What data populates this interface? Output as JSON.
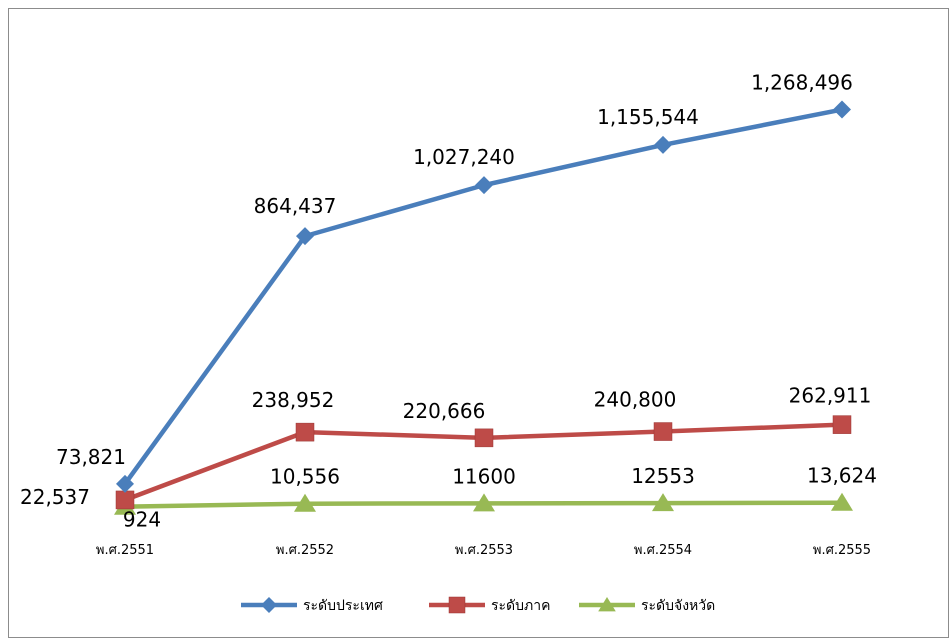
{
  "chart_data": {
    "type": "line",
    "categories": [
      "พ.ศ.2551",
      "พ.ศ.2552",
      "พ.ศ.2553",
      "พ.ศ.2554",
      "พ.ศ.2555"
    ],
    "series": [
      {
        "name": "ระดับประเทศ",
        "color": "#4a7ebb",
        "marker": "diamond",
        "values": [
          73821,
          864437,
          1027240,
          1155544,
          1268496
        ],
        "labels": [
          "73,821",
          "864,437",
          "1,027,240",
          "1,155,544",
          "1,268,496"
        ]
      },
      {
        "name": "ระดับภาค",
        "color": "#be4b48",
        "marker": "square",
        "values": [
          22537,
          238952,
          220666,
          240800,
          262911
        ],
        "labels": [
          "22,537",
          "238,952",
          "220,666",
          "240,800",
          "262,911"
        ]
      },
      {
        "name": "ระดับจังหวัด",
        "color": "#98b954",
        "marker": "triangle",
        "values": [
          924,
          10556,
          11600,
          12553,
          13624
        ],
        "labels": [
          "924",
          "10,556",
          "11600",
          "12553",
          "13,624"
        ]
      }
    ],
    "title": "",
    "xlabel": "",
    "ylabel": "",
    "ylim": [
      0,
      1350000
    ],
    "y_axis_visible": false,
    "grid": false,
    "legend_position": "bottom"
  }
}
